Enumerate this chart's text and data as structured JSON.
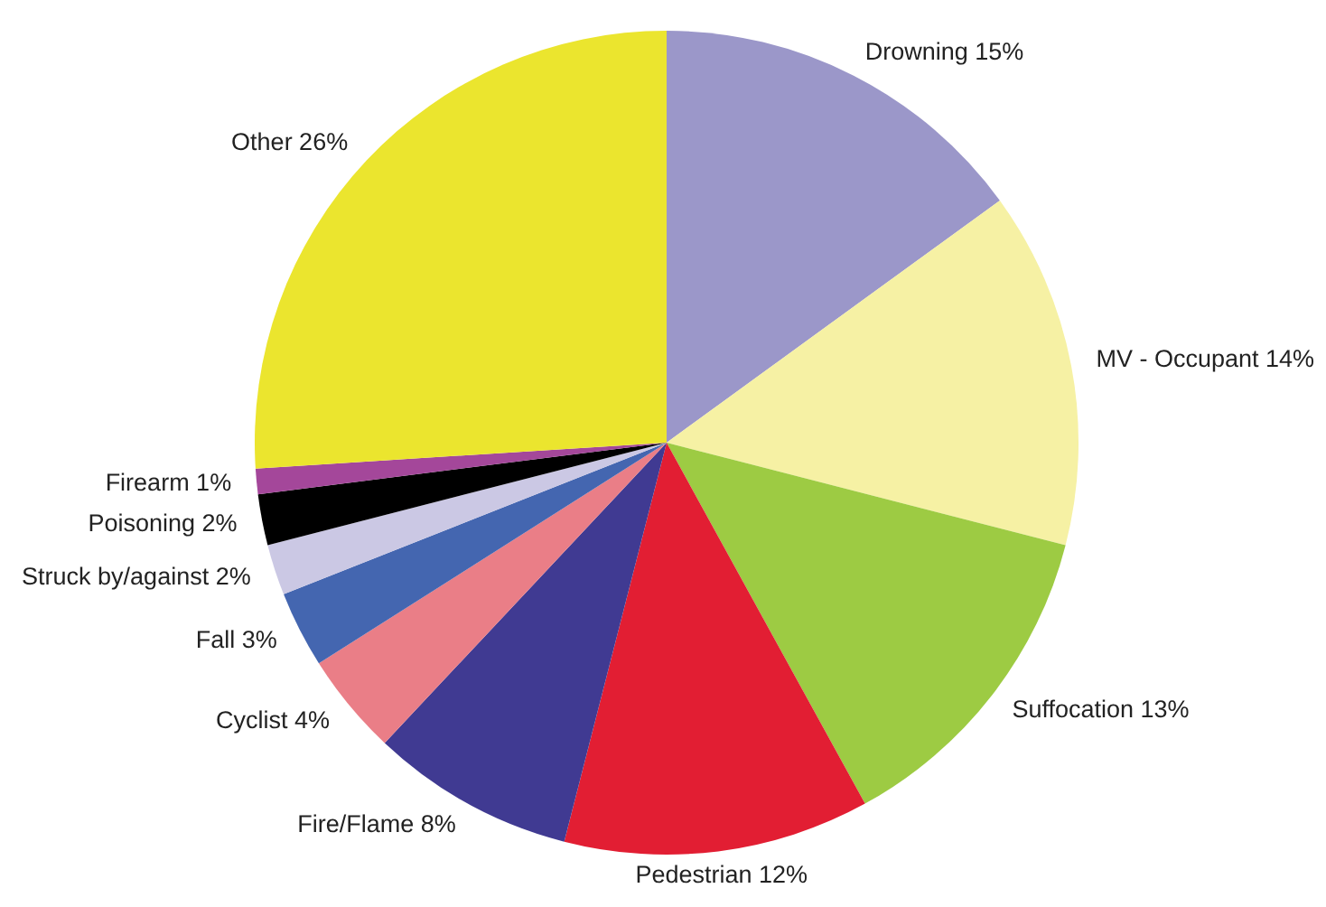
{
  "chart_data": {
    "type": "pie",
    "categories": [
      "Drowning",
      "MV - Occupant",
      "Suffocation",
      "Pedestrian",
      "Fire/Flame",
      "Cyclist",
      "Fall",
      "Struck by/against",
      "Poisoning",
      "Firearm",
      "Other"
    ],
    "values": [
      15,
      14,
      13,
      12,
      8,
      4,
      3,
      2,
      2,
      1,
      26
    ],
    "value_labels": [
      "15%",
      "14%",
      "13%",
      "12%",
      "8%",
      "4%",
      "3%",
      "2%",
      "2%",
      "1%",
      "26%"
    ],
    "colors": [
      "#9b97c9",
      "#f6f1a4",
      "#9dcb43",
      "#e21e33",
      "#403a92",
      "#ea7e87",
      "#4466b0",
      "#cbc8e4",
      "#000000",
      "#a4479a",
      "#ebe52e"
    ]
  }
}
